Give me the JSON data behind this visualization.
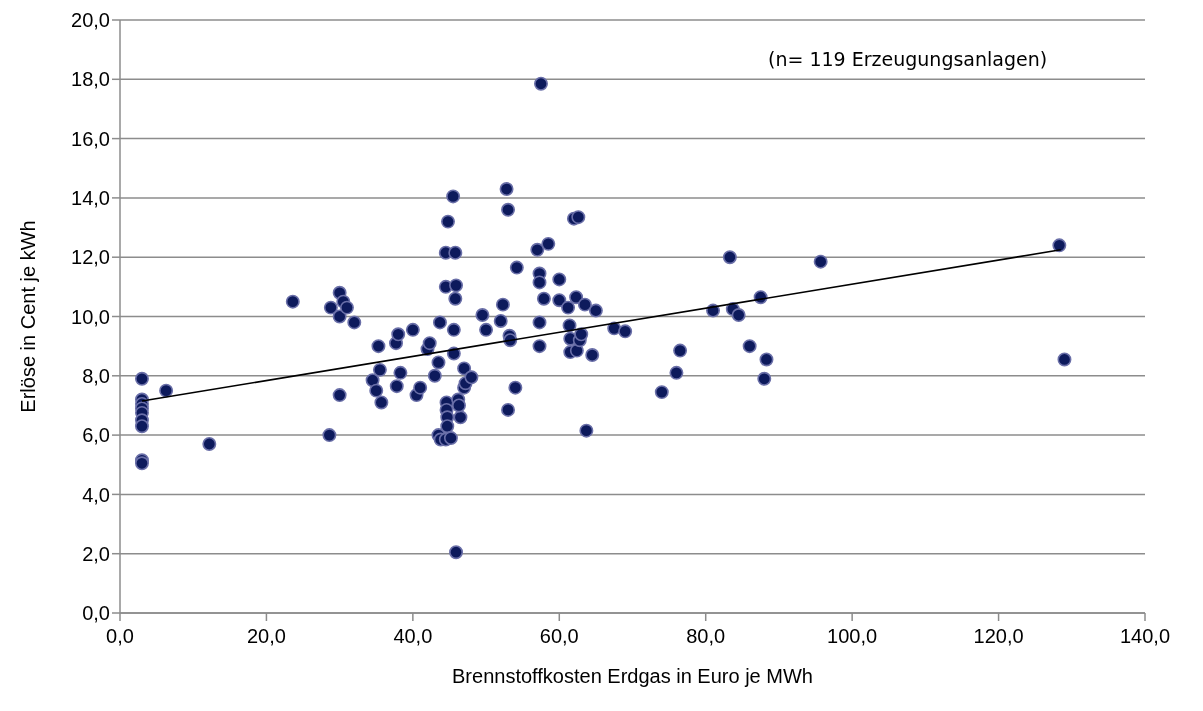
{
  "chart_data": {
    "type": "scatter",
    "xlabel": "Brennstoffkosten Erdgas in Euro je MWh",
    "ylabel": "Erlöse in Cent je kWh",
    "annotations": [
      "(n= 119 Erzeugungsanlagen)"
    ],
    "xlim": [
      0,
      140
    ],
    "ylim": [
      0,
      20
    ],
    "xticks": [
      {
        "value": 0,
        "label": "0,0"
      },
      {
        "value": 20,
        "label": "20,0"
      },
      {
        "value": 40,
        "label": "40,0"
      },
      {
        "value": 60,
        "label": "60,0"
      },
      {
        "value": 80,
        "label": "80,0"
      },
      {
        "value": 100,
        "label": "100,0"
      },
      {
        "value": 120,
        "label": "120,0"
      },
      {
        "value": 140,
        "label": "140,0"
      }
    ],
    "yticks": [
      {
        "value": 0,
        "label": "0,0"
      },
      {
        "value": 2,
        "label": "2,0"
      },
      {
        "value": 4,
        "label": "4,0"
      },
      {
        "value": 6,
        "label": "6,0"
      },
      {
        "value": 8,
        "label": "8,0"
      },
      {
        "value": 10,
        "label": "10,0"
      },
      {
        "value": 12,
        "label": "12,0"
      },
      {
        "value": 14,
        "label": "14,0"
      },
      {
        "value": 16,
        "label": "16,0"
      },
      {
        "value": 18,
        "label": "18,0"
      },
      {
        "value": 20,
        "label": "20,0"
      }
    ],
    "grid": "y",
    "legend": false,
    "series": [
      {
        "type": "scatter",
        "color": "#0d1a5c",
        "marker": "circle",
        "x": [
          3,
          3,
          3,
          3,
          3,
          3,
          3,
          3,
          3,
          6.3,
          12.2,
          23.6,
          28.6,
          28.8,
          30,
          30,
          30,
          30.5,
          31,
          32,
          34.5,
          35,
          35.3,
          35.5,
          35.7,
          37.7,
          38,
          38.3,
          37.8,
          40,
          40.5,
          41,
          42,
          42.3,
          43,
          43.5,
          43.7,
          43.5,
          43.8,
          44.5,
          44.8,
          44.5,
          44.6,
          44.6,
          44.7,
          44.7,
          44.5,
          45.2,
          45.5,
          45.8,
          45.9,
          45.8,
          45.6,
          45.6,
          45.9,
          46.2,
          46.5,
          46.3,
          47,
          47.2,
          47,
          48,
          49.5,
          50,
          52,
          52.3,
          52.8,
          53,
          53.2,
          53.3,
          53,
          54,
          54.2,
          57,
          57.3,
          57.3,
          57.3,
          57.3,
          57.9,
          58.5,
          57.5,
          60,
          60,
          61.2,
          61.4,
          61.5,
          61.5,
          62,
          62.6,
          62.3,
          62.4,
          62.8,
          63,
          63.5,
          63.7,
          64.5,
          65,
          67.5,
          69,
          74,
          76,
          76.5,
          81,
          83.3,
          83.7,
          84.5,
          86,
          87.5,
          88.3,
          88,
          95.7,
          128.3,
          129
        ],
        "values": [
          7.9,
          7.2,
          7.05,
          6.9,
          6.75,
          6.5,
          6.3,
          5.15,
          5.05,
          7.5,
          5.7,
          10.5,
          6.0,
          10.3,
          10.8,
          10.0,
          7.35,
          10.5,
          10.3,
          9.8,
          7.85,
          7.5,
          9.0,
          8.2,
          7.1,
          9.1,
          9.4,
          8.1,
          7.65,
          9.55,
          7.35,
          7.6,
          8.9,
          9.1,
          8.0,
          8.45,
          9.8,
          6.0,
          5.85,
          12.15,
          13.2,
          11.0,
          7.1,
          6.85,
          6.6,
          6.3,
          5.85,
          5.9,
          14.05,
          12.15,
          11.05,
          10.6,
          9.55,
          8.75,
          2.05,
          7.2,
          6.6,
          7.0,
          7.6,
          7.75,
          8.25,
          7.95,
          10.05,
          9.55,
          9.85,
          10.4,
          14.3,
          13.6,
          9.35,
          9.2,
          6.85,
          7.6,
          11.65,
          12.25,
          11.45,
          11.15,
          9.8,
          9.0,
          10.6,
          12.45,
          17.85,
          11.25,
          10.55,
          10.3,
          9.7,
          9.25,
          8.8,
          13.3,
          13.35,
          10.65,
          8.85,
          9.2,
          9.4,
          10.4,
          6.15,
          8.7,
          10.2,
          9.6,
          9.5,
          7.45,
          8.1,
          8.85,
          10.2,
          12.0,
          10.25,
          10.05,
          9.0,
          10.65,
          8.55,
          7.9,
          11.85,
          12.4,
          8.55
        ]
      },
      {
        "type": "line",
        "color": "#000000",
        "marker": "none",
        "line_style": "solid",
        "x": [
          3,
          128.5
        ],
        "values": [
          7.15,
          12.25
        ]
      }
    ]
  }
}
